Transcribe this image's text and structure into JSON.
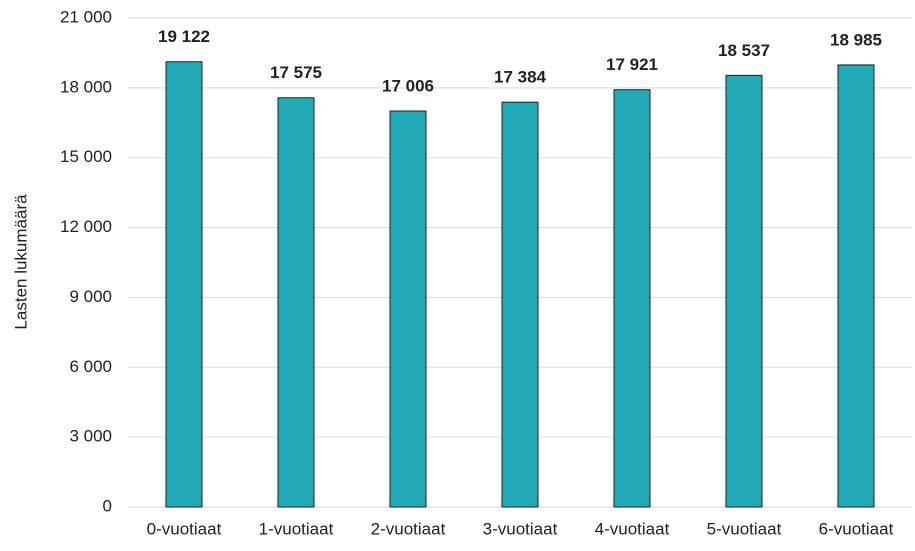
{
  "chart_data": {
    "type": "bar",
    "y_label": "Lasten lukumäärä",
    "categories": [
      "0-vuotiaat",
      "1-vuotiaat",
      "2-vuotiaat",
      "3-vuotiaat",
      "4-vuotiaat",
      "5-vuotiaat",
      "6-vuotiaat"
    ],
    "values": [
      19122,
      17575,
      17006,
      17384,
      17921,
      18537,
      18985
    ],
    "value_labels": [
      "19 122",
      "17 575",
      "17 006",
      "17 384",
      "17 921",
      "18 537",
      "18 985"
    ],
    "color": "#22abb6",
    "ylim": [
      0,
      21000
    ],
    "yticks": [
      0,
      {
        "value": 3000,
        "label": "3 000"
      },
      {
        "value": 6000,
        "label": "6 000"
      },
      {
        "value": 9000,
        "label": "9 000"
      },
      {
        "value": 12000,
        "label": "12 000"
      },
      {
        "value": 15000,
        "label": "15 000"
      },
      {
        "value": 18000,
        "label": "18 000"
      },
      {
        "value": 21000,
        "label": "21 000"
      }
    ],
    "grid": true
  }
}
